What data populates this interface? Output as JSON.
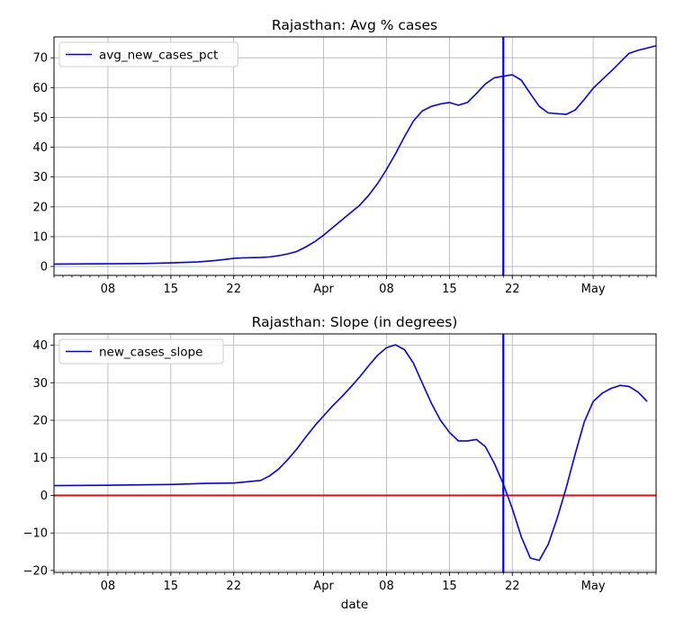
{
  "chart_data": [
    {
      "type": "line",
      "title": "Rajasthan: Avg % cases",
      "xlabel": "",
      "ylabel": "",
      "x_start": "2020-03-02",
      "x_end": "2020-05-08",
      "ylim": [
        -3,
        77
      ],
      "yticks": [
        0,
        10,
        20,
        30,
        40,
        50,
        60,
        70
      ],
      "xtick_labels": [
        {
          "date": "2020-03-08",
          "label": "08"
        },
        {
          "date": "2020-03-15",
          "label": "15"
        },
        {
          "date": "2020-03-22",
          "label": "22"
        },
        {
          "date": "2020-04-01",
          "label": "Apr"
        },
        {
          "date": "2020-04-08",
          "label": "08"
        },
        {
          "date": "2020-04-15",
          "label": "15"
        },
        {
          "date": "2020-04-22",
          "label": "22"
        },
        {
          "date": "2020-05-01",
          "label": "May"
        }
      ],
      "grid": true,
      "legend_position": "upper-left",
      "vline": {
        "date": "2020-04-21",
        "color": "#0000ff"
      },
      "series": [
        {
          "name": "avg_new_cases_pct",
          "color": "#0000ff",
          "points": [
            [
              "2020-03-02",
              0.8
            ],
            [
              "2020-03-08",
              0.9
            ],
            [
              "2020-03-12",
              1.0
            ],
            [
              "2020-03-15",
              1.2
            ],
            [
              "2020-03-18",
              1.5
            ],
            [
              "2020-03-20",
              2.0
            ],
            [
              "2020-03-22",
              2.7
            ],
            [
              "2020-03-23",
              2.9
            ],
            [
              "2020-03-25",
              3.0
            ],
            [
              "2020-03-26",
              3.2
            ],
            [
              "2020-03-27",
              3.6
            ],
            [
              "2020-03-28",
              4.2
            ],
            [
              "2020-03-29",
              5.0
            ],
            [
              "2020-03-30",
              6.5
            ],
            [
              "2020-03-31",
              8.3
            ],
            [
              "2020-04-01",
              10.5
            ],
            [
              "2020-04-02",
              13.0
            ],
            [
              "2020-04-03",
              15.5
            ],
            [
              "2020-04-04",
              18.0
            ],
            [
              "2020-04-05",
              20.5
            ],
            [
              "2020-04-06",
              23.8
            ],
            [
              "2020-04-07",
              27.8
            ],
            [
              "2020-04-08",
              32.5
            ],
            [
              "2020-04-09",
              37.8
            ],
            [
              "2020-04-10",
              43.5
            ],
            [
              "2020-04-11",
              48.8
            ],
            [
              "2020-04-12",
              52.2
            ],
            [
              "2020-04-13",
              53.7
            ],
            [
              "2020-04-14",
              54.5
            ],
            [
              "2020-04-15",
              55.0
            ],
            [
              "2020-04-16",
              54.1
            ],
            [
              "2020-04-17",
              55.0
            ],
            [
              "2020-04-18",
              58.0
            ],
            [
              "2020-04-19",
              61.2
            ],
            [
              "2020-04-20",
              63.3
            ],
            [
              "2020-04-21",
              63.8
            ],
            [
              "2020-04-22",
              64.3
            ],
            [
              "2020-04-23",
              62.5
            ],
            [
              "2020-04-24",
              58.0
            ],
            [
              "2020-04-25",
              53.7
            ],
            [
              "2020-04-26",
              51.5
            ],
            [
              "2020-04-28",
              51.0
            ],
            [
              "2020-04-29",
              52.5
            ],
            [
              "2020-04-30",
              56.0
            ],
            [
              "2020-05-01",
              59.8
            ],
            [
              "2020-05-02",
              62.7
            ],
            [
              "2020-05-03",
              65.5
            ],
            [
              "2020-05-05",
              71.5
            ],
            [
              "2020-05-06",
              72.5
            ],
            [
              "2020-05-08",
              74.0
            ]
          ]
        }
      ]
    },
    {
      "type": "line",
      "title": "Rajasthan: Slope (in degrees)",
      "xlabel": "date",
      "ylabel": "",
      "x_start": "2020-03-02",
      "x_end": "2020-05-08",
      "ylim": [
        -20.5,
        43
      ],
      "yticks": [
        -20,
        -10,
        0,
        10,
        20,
        30,
        40
      ],
      "xtick_labels": [
        {
          "date": "2020-03-08",
          "label": "08"
        },
        {
          "date": "2020-03-15",
          "label": "15"
        },
        {
          "date": "2020-03-22",
          "label": "22"
        },
        {
          "date": "2020-04-01",
          "label": "Apr"
        },
        {
          "date": "2020-04-08",
          "label": "08"
        },
        {
          "date": "2020-04-15",
          "label": "15"
        },
        {
          "date": "2020-04-22",
          "label": "22"
        },
        {
          "date": "2020-05-01",
          "label": "May"
        }
      ],
      "grid": true,
      "legend_position": "upper-left",
      "vline": {
        "date": "2020-04-21",
        "color": "#0000ff"
      },
      "hline": {
        "y": 0,
        "color": "#ff0000"
      },
      "series": [
        {
          "name": "new_cases_slope",
          "color": "#0000ff",
          "points": [
            [
              "2020-03-02",
              2.6
            ],
            [
              "2020-03-08",
              2.7
            ],
            [
              "2020-03-15",
              2.9
            ],
            [
              "2020-03-19",
              3.2
            ],
            [
              "2020-03-22",
              3.3
            ],
            [
              "2020-03-23",
              3.5
            ],
            [
              "2020-03-25",
              4.0
            ],
            [
              "2020-03-26",
              5.2
            ],
            [
              "2020-03-27",
              7.0
            ],
            [
              "2020-03-28",
              9.5
            ],
            [
              "2020-03-29",
              12.3
            ],
            [
              "2020-03-30",
              15.5
            ],
            [
              "2020-03-31",
              18.5
            ],
            [
              "2020-04-01",
              21.2
            ],
            [
              "2020-04-02",
              23.8
            ],
            [
              "2020-04-03",
              26.2
            ],
            [
              "2020-04-04",
              28.8
            ],
            [
              "2020-04-05",
              31.5
            ],
            [
              "2020-04-06",
              34.5
            ],
            [
              "2020-04-07",
              37.3
            ],
            [
              "2020-04-08",
              39.3
            ],
            [
              "2020-04-09",
              40.1
            ],
            [
              "2020-04-10",
              38.8
            ],
            [
              "2020-04-11",
              35.2
            ],
            [
              "2020-04-12",
              29.8
            ],
            [
              "2020-04-13",
              24.5
            ],
            [
              "2020-04-14",
              20.0
            ],
            [
              "2020-04-15",
              16.8
            ],
            [
              "2020-04-16",
              14.5
            ],
            [
              "2020-04-17",
              14.5
            ],
            [
              "2020-04-18",
              14.9
            ],
            [
              "2020-04-19",
              13.0
            ],
            [
              "2020-04-20",
              8.5
            ],
            [
              "2020-04-21",
              3.0
            ],
            [
              "2020-04-22",
              -3.5
            ],
            [
              "2020-04-23",
              -11.0
            ],
            [
              "2020-04-24",
              -16.7
            ],
            [
              "2020-04-25",
              -17.3
            ],
            [
              "2020-04-26",
              -13.0
            ],
            [
              "2020-04-27",
              -6.0
            ],
            [
              "2020-04-28",
              2.0
            ],
            [
              "2020-04-29",
              11.0
            ],
            [
              "2020-04-30",
              19.5
            ],
            [
              "2020-05-01",
              25.0
            ],
            [
              "2020-05-02",
              27.2
            ],
            [
              "2020-05-03",
              28.5
            ],
            [
              "2020-05-04",
              29.3
            ],
            [
              "2020-05-05",
              29.0
            ],
            [
              "2020-05-06",
              27.5
            ],
            [
              "2020-05-07",
              25.0
            ]
          ]
        }
      ]
    }
  ]
}
